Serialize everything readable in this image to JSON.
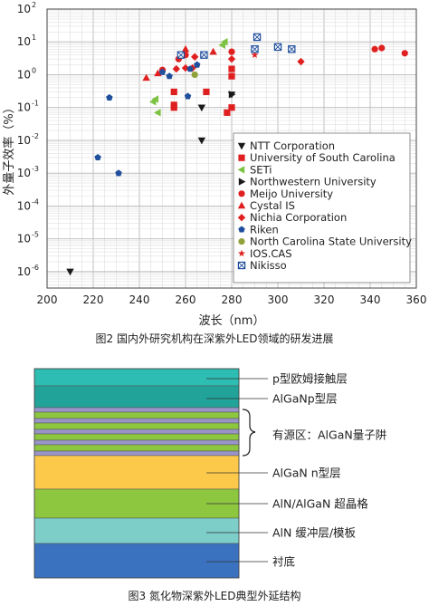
{
  "chart_data": {
    "type": "scatter",
    "xlabel": "波长（nm）",
    "ylabel": "外量子效率（%）",
    "xlim": [
      200,
      360
    ],
    "ylim_log10": [
      -6.5,
      2
    ],
    "log_y": true,
    "grid": true,
    "legend_position": "lower-right",
    "x_ticks": [
      "200",
      "220",
      "240",
      "260",
      "280",
      "300",
      "320",
      "340",
      "360"
    ],
    "y_ticks": [
      {
        "base": "10",
        "exp": "2"
      },
      {
        "base": "10",
        "exp": "1"
      },
      {
        "base": "10",
        "exp": "0"
      },
      {
        "base": "10",
        "exp": "-1"
      },
      {
        "base": "10",
        "exp": "-2"
      },
      {
        "base": "10",
        "exp": "-3"
      },
      {
        "base": "10",
        "exp": "-4"
      },
      {
        "base": "10",
        "exp": "-5"
      },
      {
        "base": "10",
        "exp": "-6"
      }
    ],
    "series": [
      {
        "name": "NTT Corporation",
        "marker": "tri-down",
        "color": "#1a1a1a",
        "points": [
          [
            210,
            1e-06
          ],
          [
            267,
            0.01
          ],
          [
            267,
            0.1
          ],
          [
            280,
            0.25
          ]
        ]
      },
      {
        "name": "University of South Carolina",
        "marker": "square",
        "color": "#e02020",
        "points": [
          [
            255,
            0.3
          ],
          [
            255,
            0.12
          ],
          [
            255,
            0.1
          ],
          [
            269,
            0.3
          ],
          [
            278,
            0.07
          ],
          [
            280,
            0.1
          ],
          [
            280,
            0.9
          ],
          [
            280,
            1.5
          ]
        ]
      },
      {
        "name": "SETi",
        "marker": "tri-left",
        "color": "#7dc242",
        "points": [
          [
            247,
            0.18
          ],
          [
            246,
            0.15
          ],
          [
            248,
            0.07
          ],
          [
            276,
            8
          ],
          [
            277,
            10
          ]
        ]
      },
      {
        "name": "Northwestern University",
        "marker": "tri-right",
        "color": "#1a1a1a",
        "points": [
          [
            280,
            0.25
          ]
        ]
      },
      {
        "name": "Meijo University",
        "marker": "circle",
        "color": "#e02020",
        "points": [
          [
            250,
            1.4
          ],
          [
            257,
            3
          ],
          [
            260,
            4
          ],
          [
            280,
            5
          ],
          [
            342,
            6
          ],
          [
            345,
            6.5
          ],
          [
            355,
            4.5
          ]
        ]
      },
      {
        "name": "Cystal IS",
        "marker": "tri-up",
        "color": "#e02020",
        "points": [
          [
            243,
            0.8
          ],
          [
            248,
            1.1
          ],
          [
            260,
            6
          ],
          [
            272,
            5
          ]
        ]
      },
      {
        "name": "Nichia Corporation",
        "marker": "diamond",
        "color": "#e02020",
        "points": [
          [
            256,
            1.5
          ],
          [
            260,
            1.6
          ],
          [
            263,
            1.6
          ],
          [
            264,
            3.5
          ],
          [
            280,
            3
          ],
          [
            310,
            2.5
          ]
        ]
      },
      {
        "name": "Riken",
        "marker": "pentagon",
        "color": "#1f4e9c",
        "points": [
          [
            222,
            0.003
          ],
          [
            227,
            0.2
          ],
          [
            231,
            0.001
          ],
          [
            250,
            1.2
          ],
          [
            253,
            0.9
          ],
          [
            261,
            0.22
          ],
          [
            262,
            1.5
          ],
          [
            265,
            2
          ]
        ]
      },
      {
        "name": "North Carolina State University",
        "marker": "circle",
        "color": "#8fa23a",
        "points": [
          [
            264,
            1
          ]
        ]
      },
      {
        "name": "IOS.CAS",
        "marker": "star",
        "color": "#e02020",
        "points": [
          [
            290,
            4
          ]
        ]
      },
      {
        "name": "Nikisso",
        "marker": "crossed-square",
        "color": "#1f4e9c",
        "points": [
          [
            258,
            4
          ],
          [
            268,
            4
          ],
          [
            290,
            6
          ],
          [
            291,
            14
          ],
          [
            300,
            7
          ],
          [
            306,
            6
          ]
        ]
      }
    ]
  },
  "captions": {
    "figure2": "图2 国内外研究机构在深紫外LED领域的研发进展",
    "figure3": "图3 氮化物深紫外LED典型外延结构"
  },
  "figure3": {
    "layers": [
      {
        "label": "p型欧姆接触层",
        "color": "#2dbdb2"
      },
      {
        "label": "AlGaNp型层",
        "color": "#22a39a"
      },
      {
        "label": "有源区：AlGaN量子阱",
        "colors": [
          "#9a95c9",
          "#8dc63f"
        ]
      },
      {
        "label": "AlGaN n型层",
        "color": "#fdc94a"
      },
      {
        "label": "AlN/AlGaN 超晶格",
        "color": "#8dc63f"
      },
      {
        "label": "AlN 缓冲层/模板",
        "color": "#7dcdc9"
      },
      {
        "label": "衬底",
        "color": "#3a72c0"
      }
    ]
  }
}
